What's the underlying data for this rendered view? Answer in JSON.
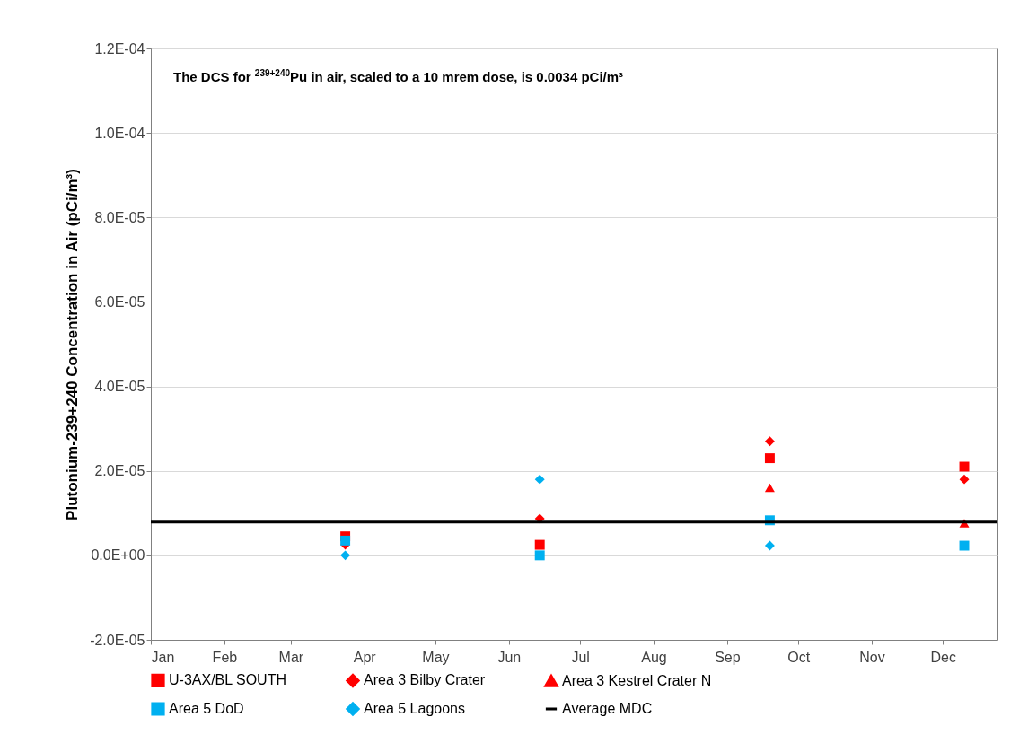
{
  "chart_data": {
    "type": "scatter",
    "ylabel": "Plutonium-239+240 Concentration in Air (pCi/m³)",
    "annotations": [
      "The DCS for $^{239+240}$Pu in air, scaled to a 10 mrem dose, is 0.0034 pCi/m³"
    ],
    "x": [
      "--03-24",
      "--06-14",
      "--09-19",
      "--12-10"
    ],
    "series": [
      {
        "name": "U-3AX/BL SOUTH",
        "color": "#ff0000",
        "marker": "square",
        "values": [
          4.5e-06,
          2.5e-06,
          2.3e-05,
          2.1e-05
        ]
      },
      {
        "name": "Area 3 Bilby Crater",
        "color": "#ff0000",
        "marker": "diamond",
        "values": [
          2.5e-06,
          8.7e-06,
          2.7e-05,
          1.8e-05
        ]
      },
      {
        "name": "Area 3 Kestrel Crater N",
        "color": "#ff0000",
        "marker": "triangle",
        "values": [
          null,
          null,
          1.6e-05,
          7.6e-06
        ]
      },
      {
        "name": "Area 5 DoD",
        "color": "#00b0f0",
        "marker": "square",
        "values": [
          3.5e-06,
          0,
          8.3e-06,
          2.3e-06
        ]
      },
      {
        "name": "Area 5 Lagoons",
        "color": "#00b0f0",
        "marker": "diamond",
        "values": [
          0,
          1.8e-05,
          2.3e-06,
          null
        ]
      },
      {
        "name": "Average MDC",
        "color": "#000000",
        "type": "line",
        "marker": "none",
        "x": [
          "--01-01",
          "--12-24"
        ],
        "values": [
          7.9e-06,
          7.9e-06
        ]
      }
    ],
    "xlim": [
      "--01-01",
      "--12-24"
    ],
    "xticks": [
      {
        "value": "--01-01",
        "label": "Jan"
      },
      {
        "value": "--02-01",
        "label": "Feb"
      },
      {
        "value": "--03-01",
        "label": "Mar"
      },
      {
        "value": "--04-01",
        "label": "Apr"
      },
      {
        "value": "--05-01",
        "label": "May"
      },
      {
        "value": "--06-01",
        "label": "Jun"
      },
      {
        "value": "--07-01",
        "label": "Jul"
      },
      {
        "value": "--08-01",
        "label": "Aug"
      },
      {
        "value": "--09-01",
        "label": "Sep"
      },
      {
        "value": "--10-01",
        "label": "Oct"
      },
      {
        "value": "--11-01",
        "label": "Nov"
      },
      {
        "value": "--12-01",
        "label": "Dec"
      }
    ],
    "ylim": [
      -2e-05,
      0.00012
    ],
    "yticks": [
      {
        "value": -2e-05,
        "label": "-2.0E-05"
      },
      {
        "value": 0,
        "label": "0.0E+00"
      },
      {
        "value": 2e-05,
        "label": "2.0E-05"
      },
      {
        "value": 4e-05,
        "label": "4.0E-05"
      },
      {
        "value": 6e-05,
        "label": "6.0E-05"
      },
      {
        "value": 8e-05,
        "label": "8.0E-05"
      },
      {
        "value": 0.0001,
        "label": "1.0E-04"
      },
      {
        "value": 0.00012,
        "label": "1.2E-04"
      }
    ],
    "grid": "y",
    "legend": "bottom"
  }
}
